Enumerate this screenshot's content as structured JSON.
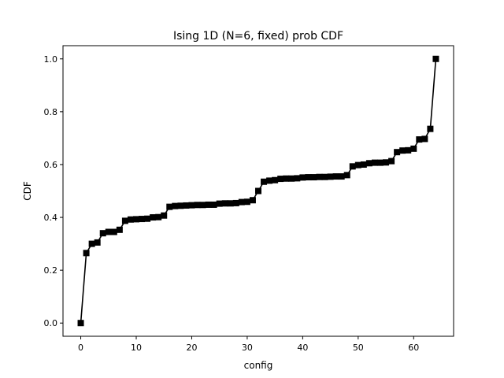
{
  "chart_data": {
    "type": "line",
    "title": "Ising 1D (N=6, fixed) prob CDF",
    "xlabel": "config",
    "ylabel": "CDF",
    "xlim": [
      -3.2,
      67.2
    ],
    "ylim": [
      -0.05,
      1.05
    ],
    "xticks": [
      0,
      10,
      20,
      30,
      40,
      50,
      60
    ],
    "yticks": [
      0.0,
      0.2,
      0.4,
      0.6,
      0.8,
      1.0
    ],
    "xtick_labels": [
      "0",
      "10",
      "20",
      "30",
      "40",
      "50",
      "60"
    ],
    "ytick_labels": [
      "0.0",
      "0.2",
      "0.4",
      "0.6",
      "0.8",
      "1.0"
    ],
    "grid": false,
    "marker": "square",
    "color": "#000000",
    "series": [
      {
        "x": [
          0,
          1,
          2,
          3,
          4,
          5,
          6,
          7,
          8,
          9,
          10,
          11,
          12,
          13,
          14,
          15,
          16,
          17,
          18,
          19,
          20,
          21,
          22,
          23,
          24,
          25,
          26,
          27,
          28,
          29,
          30,
          31,
          32,
          33,
          34,
          35,
          36,
          37,
          38,
          39,
          40,
          41,
          42,
          43,
          44,
          45,
          46,
          47,
          48,
          49,
          50,
          51,
          52,
          53,
          54,
          55,
          56,
          57,
          58,
          59,
          60,
          61,
          62,
          63,
          64
        ],
        "values": [
          0.0,
          0.265,
          0.3,
          0.305,
          0.34,
          0.345,
          0.345,
          0.353,
          0.387,
          0.392,
          0.393,
          0.394,
          0.395,
          0.4,
          0.401,
          0.407,
          0.44,
          0.443,
          0.444,
          0.445,
          0.446,
          0.447,
          0.447,
          0.448,
          0.448,
          0.452,
          0.453,
          0.453,
          0.454,
          0.458,
          0.459,
          0.465,
          0.5,
          0.535,
          0.539,
          0.541,
          0.546,
          0.547,
          0.547,
          0.548,
          0.551,
          0.552,
          0.552,
          0.553,
          0.553,
          0.554,
          0.555,
          0.555,
          0.56,
          0.593,
          0.598,
          0.6,
          0.605,
          0.607,
          0.607,
          0.608,
          0.613,
          0.647,
          0.653,
          0.654,
          0.66,
          0.695,
          0.697,
          0.735,
          1.0
        ]
      }
    ]
  }
}
